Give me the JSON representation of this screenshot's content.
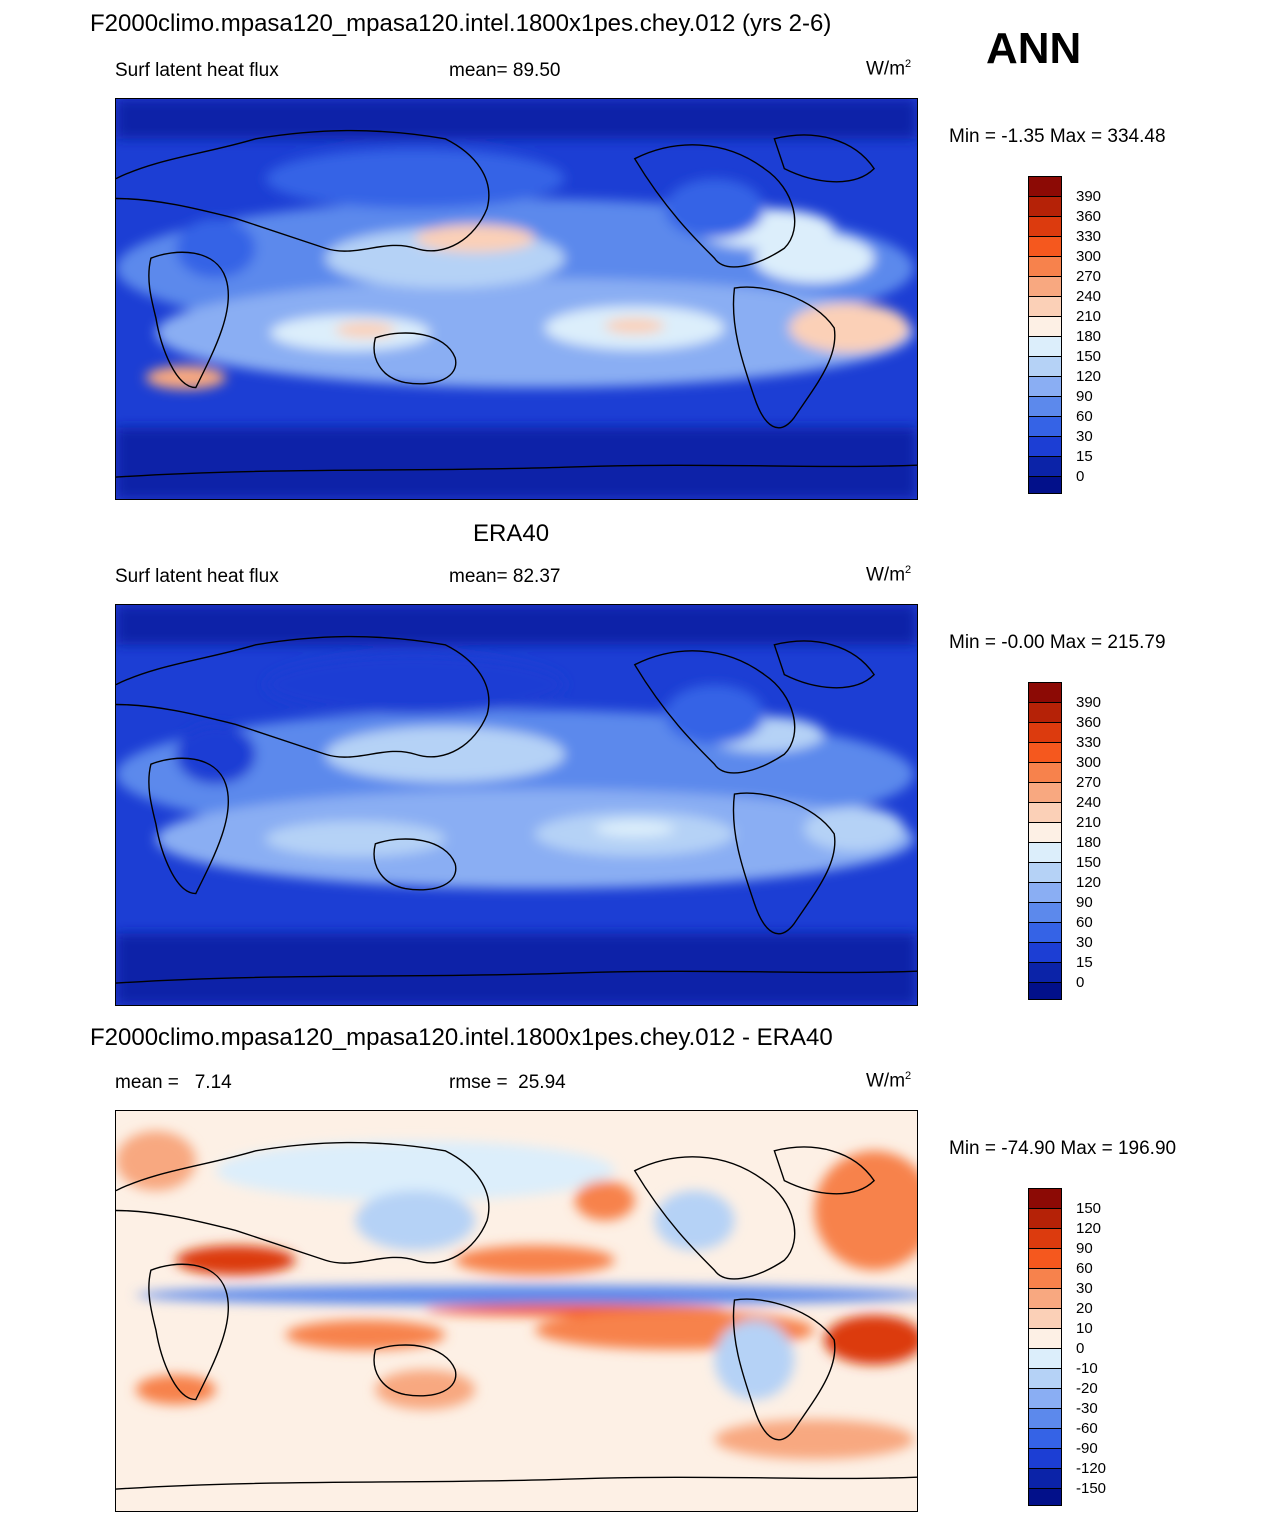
{
  "season": "ANN",
  "panels": [
    {
      "id": "model",
      "title": "F2000climo.mpasa120_mpasa120.intel.1800x1pes.chey.012 (yrs 2-6)",
      "left_label": "Surf latent heat flux",
      "center_label": "mean=  89.50",
      "units": "W/m",
      "units_exp": "2",
      "minmax": "Min =  -1.35 Max = 334.48",
      "colorbar_labels": [
        "390",
        "360",
        "330",
        "300",
        "270",
        "240",
        "210",
        "180",
        "150",
        "120",
        "90",
        "60",
        "30",
        "15",
        "0"
      ],
      "colorbar_colors": [
        "#8c0a05",
        "#b52207",
        "#dc3b0e",
        "#f5581e",
        "#f7824c",
        "#f8a880",
        "#fbd0b7",
        "#fdf0e5",
        "#dceefb",
        "#b5d2f6",
        "#8aaef3",
        "#5c89ec",
        "#3563e6",
        "#1c3ed4",
        "#0b23a8",
        "#02108a"
      ]
    },
    {
      "id": "obs",
      "title": "ERA40",
      "left_label": "Surf latent heat flux",
      "center_label": "mean=  82.37",
      "units": "W/m",
      "units_exp": "2",
      "minmax": "Min =  -0.00 Max = 215.79",
      "colorbar_labels": [
        "390",
        "360",
        "330",
        "300",
        "270",
        "240",
        "210",
        "180",
        "150",
        "120",
        "90",
        "60",
        "30",
        "15",
        "0"
      ],
      "colorbar_colors": [
        "#8c0a05",
        "#b52207",
        "#dc3b0e",
        "#f5581e",
        "#f7824c",
        "#f8a880",
        "#fbd0b7",
        "#fdf0e5",
        "#dceefb",
        "#b5d2f6",
        "#8aaef3",
        "#5c89ec",
        "#3563e6",
        "#1c3ed4",
        "#0b23a8",
        "#02108a"
      ]
    },
    {
      "id": "diff",
      "title": "F2000climo.mpasa120_mpasa120.intel.1800x1pes.chey.012 - ERA40",
      "left_label": "mean =   7.14",
      "center_label": "rmse =  25.94",
      "units": "W/m",
      "units_exp": "2",
      "minmax": "Min = -74.90 Max = 196.90",
      "colorbar_labels": [
        "150",
        "120",
        "90",
        "60",
        "30",
        "20",
        "10",
        "0",
        "-10",
        "-20",
        "-30",
        "-60",
        "-90",
        "-120",
        "-150"
      ],
      "colorbar_colors": [
        "#8c0a05",
        "#b52207",
        "#dc3b0e",
        "#f5581e",
        "#f7824c",
        "#f8a880",
        "#fbd0b7",
        "#fdf0e5",
        "#dceefb",
        "#b5d2f6",
        "#8aaef3",
        "#5c89ec",
        "#3563e6",
        "#1c3ed4",
        "#0b23a8",
        "#02108a"
      ]
    }
  ]
}
